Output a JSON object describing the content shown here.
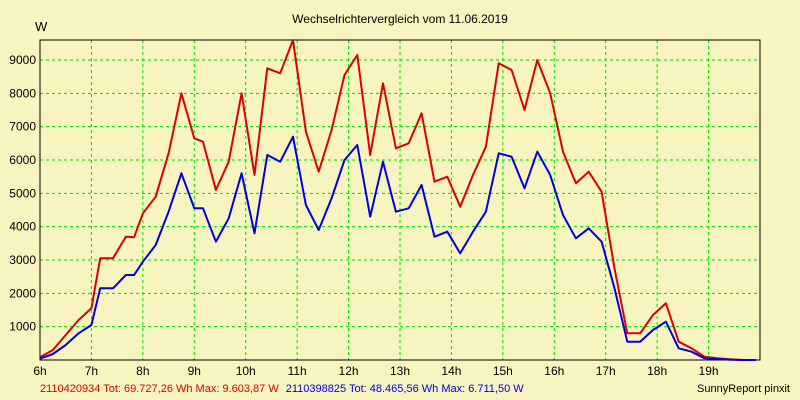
{
  "colors": {
    "background": "#f7f4c0",
    "grid": "#00dd00",
    "series1": "#dd0000",
    "series2": "#0000dd"
  },
  "chart_data": {
    "type": "line",
    "title": "Wechselrichtervergleich vom 11.06.2019",
    "ylabel": "W",
    "xlabel": "",
    "xlim": [
      6,
      20
    ],
    "ylim": [
      0,
      9600
    ],
    "grid": true,
    "xticks": [
      {
        "value": 6,
        "label": "6h"
      },
      {
        "value": 7,
        "label": "7h"
      },
      {
        "value": 8,
        "label": "8h"
      },
      {
        "value": 9,
        "label": "9h"
      },
      {
        "value": 10,
        "label": "10h"
      },
      {
        "value": 11,
        "label": "11h"
      },
      {
        "value": 12,
        "label": "12h"
      },
      {
        "value": 13,
        "label": "13h"
      },
      {
        "value": 14,
        "label": "14h"
      },
      {
        "value": 15,
        "label": "15h"
      },
      {
        "value": 16,
        "label": "16h"
      },
      {
        "value": 17,
        "label": "17h"
      },
      {
        "value": 18,
        "label": "18h"
      },
      {
        "value": 19,
        "label": "19h"
      }
    ],
    "yticks": [
      {
        "value": 1000,
        "label": "1000"
      },
      {
        "value": 2000,
        "label": "2000"
      },
      {
        "value": 3000,
        "label": "3000"
      },
      {
        "value": 4000,
        "label": "4000"
      },
      {
        "value": 5000,
        "label": "5000"
      },
      {
        "value": 6000,
        "label": "6000"
      },
      {
        "value": 7000,
        "label": "7000"
      },
      {
        "value": 8000,
        "label": "8000"
      },
      {
        "value": 9000,
        "label": "9000"
      }
    ],
    "x": [
      6.0,
      6.25,
      6.5,
      6.75,
      7.0,
      7.17,
      7.42,
      7.67,
      7.83,
      8.0,
      8.25,
      8.5,
      8.75,
      9.0,
      9.17,
      9.42,
      9.67,
      9.92,
      10.17,
      10.42,
      10.67,
      10.92,
      11.17,
      11.42,
      11.67,
      11.92,
      12.17,
      12.42,
      12.67,
      12.92,
      13.17,
      13.42,
      13.67,
      13.92,
      14.17,
      14.42,
      14.67,
      14.92,
      15.17,
      15.42,
      15.67,
      15.92,
      16.17,
      16.42,
      16.67,
      16.92,
      17.17,
      17.42,
      17.67,
      17.92,
      18.17,
      18.42,
      18.67,
      18.92,
      19.17,
      19.42,
      19.67,
      19.92
    ],
    "series": [
      {
        "name": "2110420934",
        "color": "#dd0000",
        "values": [
          80,
          300,
          750,
          1200,
          1550,
          3050,
          3050,
          3700,
          3680,
          4400,
          4900,
          6200,
          8000,
          6650,
          6550,
          5100,
          5950,
          8000,
          5550,
          8750,
          8600,
          9600,
          6850,
          5650,
          6900,
          8550,
          9150,
          6150,
          8300,
          6350,
          6500,
          7400,
          5350,
          5500,
          4600,
          5550,
          6400,
          8900,
          8700,
          7500,
          9000,
          8000,
          6250,
          5300,
          5650,
          5050,
          2750,
          800,
          800,
          1350,
          1700,
          550,
          350,
          100,
          50,
          20,
          0,
          0
        ]
      },
      {
        "name": "2110398825",
        "color": "#0000dd",
        "values": [
          40,
          180,
          450,
          800,
          1050,
          2150,
          2150,
          2550,
          2550,
          2950,
          3450,
          4450,
          5600,
          4550,
          4550,
          3550,
          4250,
          5600,
          3800,
          6150,
          5950,
          6700,
          4650,
          3900,
          4850,
          6000,
          6450,
          4300,
          5950,
          4450,
          4550,
          5250,
          3700,
          3850,
          3200,
          3850,
          4450,
          6200,
          6100,
          5150,
          6250,
          5550,
          4350,
          3650,
          3950,
          3550,
          2150,
          550,
          550,
          900,
          1150,
          350,
          250,
          50,
          30,
          10,
          0,
          0
        ]
      }
    ]
  },
  "footer": {
    "series1_text": "2110420934 Tot: 69.727,26 Wh Max: 9.603,87 W",
    "series2_text": "2110398825 Tot: 48.465,56 Wh Max: 6.711,50 W",
    "credit": "SunnyReport pinxit"
  }
}
